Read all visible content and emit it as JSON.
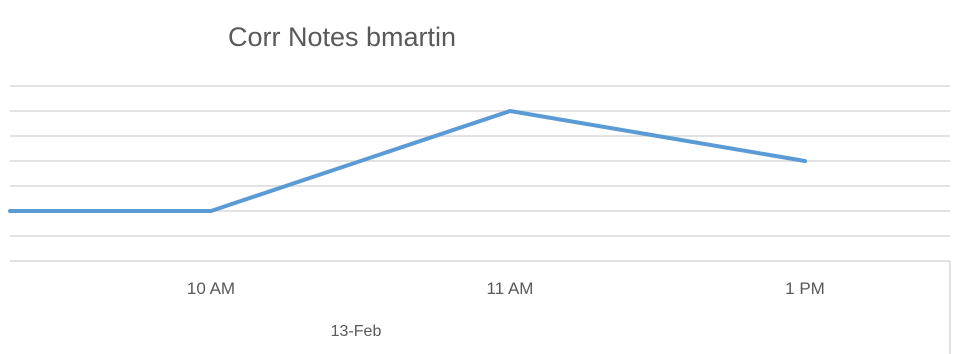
{
  "chart_data": {
    "type": "line",
    "title": "Corr Notes bmartin",
    "categories": [
      "",
      "10 AM",
      "11 AM",
      "1 PM"
    ],
    "group_label": "13-Feb",
    "series": [
      {
        "values": [
          2,
          2,
          6,
          4
        ]
      }
    ],
    "ylim": [
      0,
      7
    ],
    "grid": true,
    "colors": {
      "series": "#5b9bd5",
      "grid": "#d9d9d9",
      "text": "#595959"
    }
  }
}
